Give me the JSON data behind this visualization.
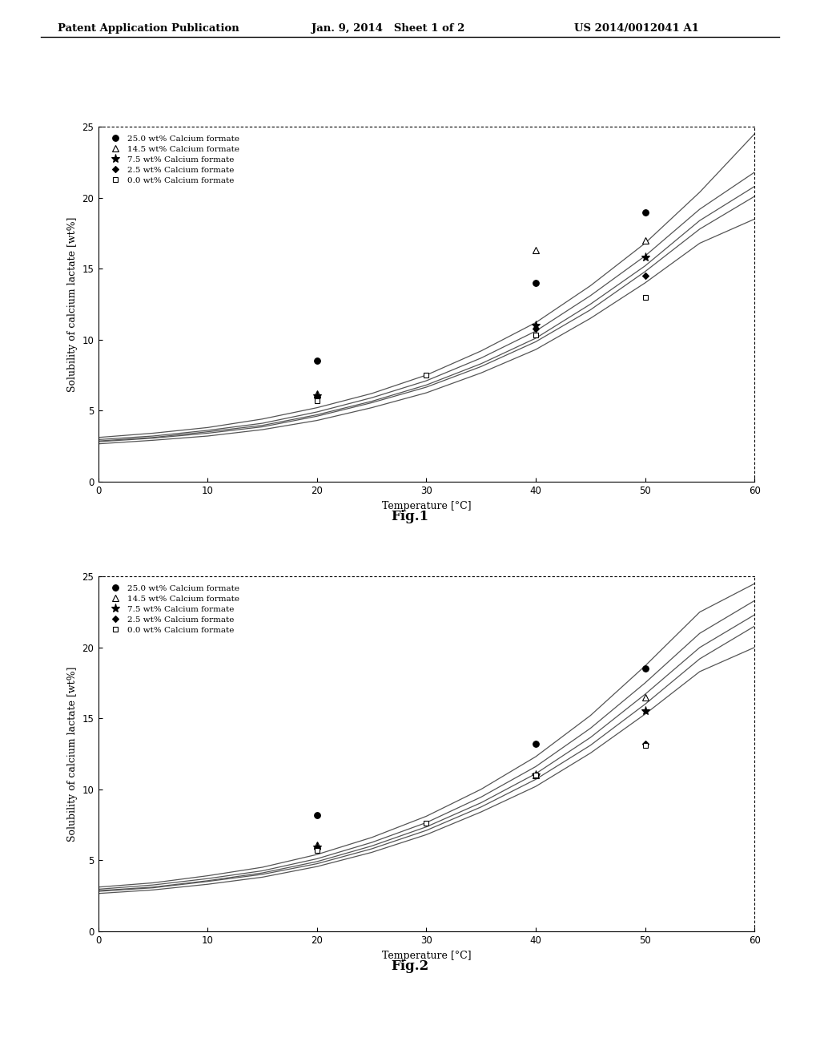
{
  "header_left": "Patent Application Publication",
  "header_mid": "Jan. 9, 2014   Sheet 1 of 2",
  "header_right": "US 2014/0012041 A1",
  "fig1_caption": "Fig.1",
  "fig2_caption": "Fig.2",
  "xlabel": "Temperature [°C]",
  "ylabel": "Solubility of calcium lactate [wt%]",
  "xlim": [
    0,
    60
  ],
  "ylim": [
    0,
    25
  ],
  "xticks": [
    0,
    10,
    20,
    30,
    40,
    50,
    60
  ],
  "yticks": [
    0,
    5,
    10,
    15,
    20,
    25
  ],
  "legend_labels": [
    "25.0 wt% Calcium formate",
    "14.5 wt% Calcium formate",
    "7.5 wt% Calcium formate",
    "2.5 wt% Calcium formate",
    "0.0 wt% Calcium formate"
  ],
  "legend_markers": [
    "o",
    "^",
    "*",
    "D",
    "s"
  ],
  "legend_fillstyle": [
    "full",
    "none",
    "full",
    "full",
    "none"
  ],
  "fig1": {
    "series": [
      {
        "label": "25.0 wt% Calcium formate",
        "marker": "o",
        "fillstyle": "full",
        "data_x": [
          20,
          40,
          50
        ],
        "data_y": [
          8.5,
          14.0,
          19.0
        ],
        "curve_x": [
          0,
          5,
          10,
          15,
          20,
          25,
          30,
          35,
          40,
          45,
          50,
          55,
          60
        ],
        "curve_y": [
          3.1,
          3.4,
          3.8,
          4.4,
          5.2,
          6.2,
          7.5,
          9.2,
          11.2,
          13.8,
          16.8,
          20.4,
          24.5
        ]
      },
      {
        "label": "14.5 wt% Calcium formate",
        "marker": "^",
        "fillstyle": "none",
        "data_x": [
          20,
          40,
          50
        ],
        "data_y": [
          6.2,
          16.3,
          17.0
        ],
        "curve_x": [
          0,
          5,
          10,
          15,
          20,
          25,
          30,
          35,
          40,
          45,
          50,
          55,
          60
        ],
        "curve_y": [
          2.95,
          3.2,
          3.6,
          4.1,
          4.9,
          5.9,
          7.1,
          8.7,
          10.6,
          13.1,
          15.9,
          19.2,
          21.8
        ]
      },
      {
        "label": "7.5 wt% Calcium formate",
        "marker": "*",
        "fillstyle": "full",
        "data_x": [
          20,
          40,
          50
        ],
        "data_y": [
          6.0,
          11.0,
          15.8
        ],
        "curve_x": [
          0,
          5,
          10,
          15,
          20,
          25,
          30,
          35,
          40,
          45,
          50,
          55,
          60
        ],
        "curve_y": [
          2.85,
          3.1,
          3.5,
          3.95,
          4.7,
          5.65,
          6.8,
          8.3,
          10.1,
          12.5,
          15.2,
          18.4,
          20.8
        ]
      },
      {
        "label": "2.5 wt% Calcium formate",
        "marker": "D",
        "fillstyle": "full",
        "data_x": [
          20,
          40,
          50
        ],
        "data_y": [
          5.9,
          10.8,
          14.5
        ],
        "curve_x": [
          0,
          5,
          10,
          15,
          20,
          25,
          30,
          35,
          40,
          45,
          50,
          55,
          60
        ],
        "curve_y": [
          2.8,
          3.05,
          3.4,
          3.85,
          4.6,
          5.55,
          6.65,
          8.1,
          9.85,
          12.1,
          14.8,
          17.8,
          20.1
        ]
      },
      {
        "label": "0.0 wt% Calcium formate",
        "marker": "s",
        "fillstyle": "none",
        "data_x": [
          20,
          30,
          40,
          50
        ],
        "data_y": [
          5.7,
          7.5,
          10.3,
          13.0
        ],
        "curve_x": [
          0,
          5,
          10,
          15,
          20,
          25,
          30,
          35,
          40,
          45,
          50,
          55,
          60
        ],
        "curve_y": [
          2.65,
          2.9,
          3.2,
          3.65,
          4.3,
          5.2,
          6.25,
          7.65,
          9.3,
          11.5,
          14.0,
          16.8,
          18.5
        ]
      }
    ]
  },
  "fig2": {
    "series": [
      {
        "label": "25.0 wt% Calcium formate",
        "marker": "o",
        "fillstyle": "full",
        "data_x": [
          20,
          40,
          50
        ],
        "data_y": [
          8.2,
          13.2,
          18.5
        ],
        "curve_x": [
          0,
          5,
          10,
          15,
          20,
          25,
          30,
          35,
          40,
          45,
          50,
          55,
          60
        ],
        "curve_y": [
          3.1,
          3.4,
          3.9,
          4.5,
          5.4,
          6.6,
          8.1,
          10.0,
          12.3,
          15.2,
          18.7,
          22.5,
          24.5
        ]
      },
      {
        "label": "14.5 wt% Calcium formate",
        "marker": "^",
        "fillstyle": "none",
        "data_x": [
          20,
          40,
          50
        ],
        "data_y": [
          6.1,
          11.0,
          16.5
        ],
        "curve_x": [
          0,
          5,
          10,
          15,
          20,
          25,
          30,
          35,
          40,
          45,
          50,
          55,
          60
        ],
        "curve_y": [
          2.95,
          3.25,
          3.7,
          4.25,
          5.1,
          6.25,
          7.65,
          9.45,
          11.6,
          14.3,
          17.5,
          21.0,
          23.3
        ]
      },
      {
        "label": "7.5 wt% Calcium formate",
        "marker": "*",
        "fillstyle": "full",
        "data_x": [
          20,
          40,
          50
        ],
        "data_y": [
          5.9,
          11.0,
          15.5
        ],
        "curve_x": [
          0,
          5,
          10,
          15,
          20,
          25,
          30,
          35,
          40,
          45,
          50,
          55,
          60
        ],
        "curve_y": [
          2.85,
          3.1,
          3.55,
          4.1,
          4.9,
          6.0,
          7.35,
          9.05,
          11.1,
          13.65,
          16.7,
          20.0,
          22.3
        ]
      },
      {
        "label": "2.5 wt% Calcium formate",
        "marker": "D",
        "fillstyle": "full",
        "data_x": [
          20,
          40,
          50
        ],
        "data_y": [
          5.8,
          11.0,
          13.2
        ],
        "curve_x": [
          0,
          5,
          10,
          15,
          20,
          25,
          30,
          35,
          40,
          45,
          50,
          55,
          60
        ],
        "curve_y": [
          2.8,
          3.05,
          3.5,
          4.0,
          4.75,
          5.8,
          7.1,
          8.75,
          10.7,
          13.1,
          16.0,
          19.2,
          21.5
        ]
      },
      {
        "label": "0.0 wt% Calcium formate",
        "marker": "s",
        "fillstyle": "none",
        "data_x": [
          20,
          30,
          40,
          50
        ],
        "data_y": [
          5.7,
          7.6,
          11.0,
          13.1
        ],
        "curve_x": [
          0,
          5,
          10,
          15,
          20,
          25,
          30,
          35,
          40,
          45,
          50,
          55,
          60
        ],
        "curve_y": [
          2.65,
          2.9,
          3.3,
          3.8,
          4.55,
          5.55,
          6.8,
          8.4,
          10.2,
          12.55,
          15.3,
          18.3,
          20.0
        ]
      }
    ]
  }
}
